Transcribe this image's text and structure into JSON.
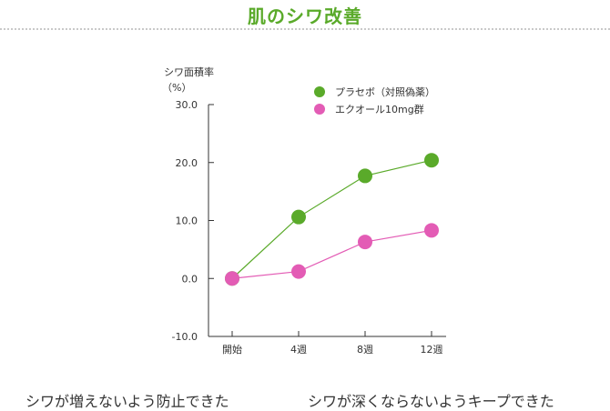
{
  "page": {
    "title": "肌のシワ改善"
  },
  "captions": {
    "left": "シワが増えないよう防止できた",
    "right": "シワが深くならないようキープできた"
  },
  "chart_data": {
    "type": "line",
    "ylabel": [
      "シワ面積率",
      "（%）"
    ],
    "categories": [
      "開始",
      "4週",
      "8週",
      "12週"
    ],
    "ylim": [
      -10,
      30
    ],
    "yticks": [
      "30.0",
      "20.0",
      "10.0",
      "0.0",
      "-10.0"
    ],
    "legend_position": "top-right",
    "series": [
      {
        "name": "プラセボ（対照偽薬）",
        "color": "#5aaa2a",
        "values": [
          0.0,
          10.6,
          17.7,
          20.4
        ]
      },
      {
        "name": "エクオール10mg群",
        "color": "#e35cb5",
        "values": [
          0.0,
          1.2,
          6.3,
          8.3
        ]
      }
    ]
  }
}
